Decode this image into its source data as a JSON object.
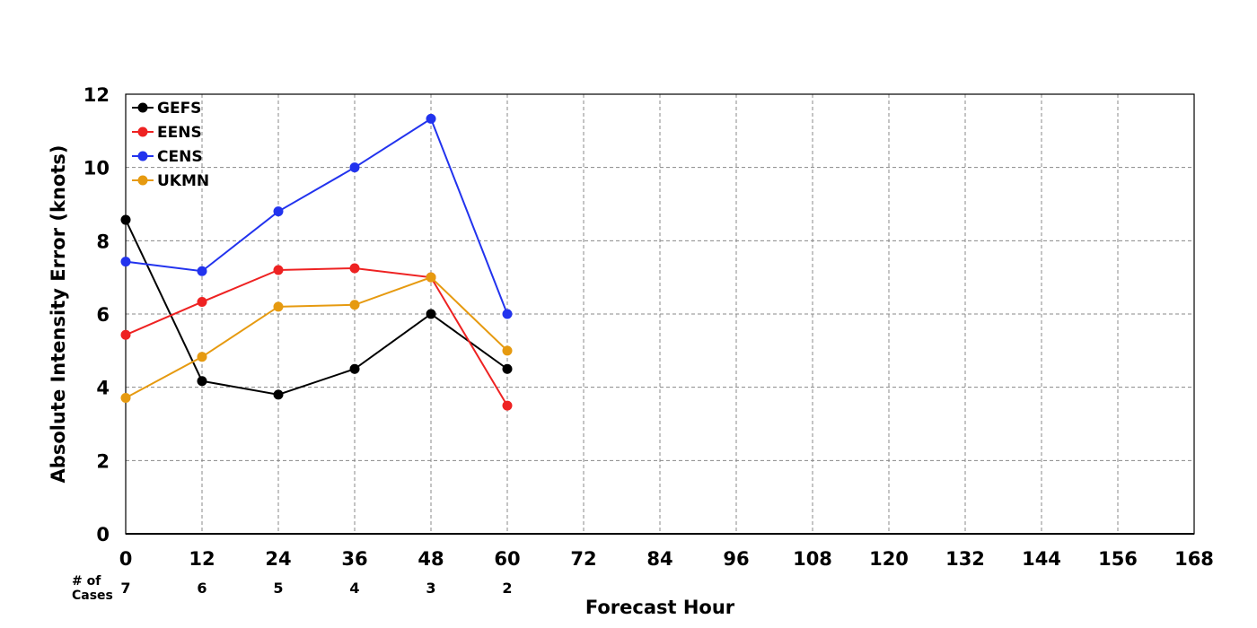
{
  "chart_data": {
    "type": "line",
    "title": "",
    "xlabel": "Forecast Hour",
    "ylabel": "Absolute Intensity Error (knots)",
    "xlim": [
      0,
      168
    ],
    "ylim": [
      0,
      12
    ],
    "x_ticks": [
      "0",
      "12",
      "24",
      "36",
      "48",
      "60",
      "72",
      "84",
      "96",
      "108",
      "120",
      "132",
      "144",
      "156",
      "168"
    ],
    "y_ticks": [
      "0",
      "2",
      "4",
      "6",
      "8",
      "10",
      "12"
    ],
    "grid": true,
    "legend_position": "top-left",
    "x": [
      0,
      12,
      24,
      36,
      48,
      60
    ],
    "series": [
      {
        "name": "GEFS",
        "color": "#000000",
        "values": [
          8.57,
          4.17,
          3.8,
          4.5,
          6.0,
          4.5
        ]
      },
      {
        "name": "EENS",
        "color": "#ee2222",
        "values": [
          5.43,
          6.33,
          7.2,
          7.25,
          7.0,
          3.5
        ]
      },
      {
        "name": "CENS",
        "color": "#2233ee",
        "values": [
          7.43,
          7.17,
          8.8,
          10.0,
          11.33,
          6.0
        ]
      },
      {
        "name": "UKMN",
        "color": "#e69a10",
        "values": [
          3.71,
          4.83,
          6.2,
          6.25,
          7.0,
          5.0
        ]
      }
    ],
    "cases": {
      "label_line1": "# of",
      "label_line2": "Cases",
      "values": [
        "7",
        "6",
        "5",
        "4",
        "3",
        "2"
      ]
    }
  }
}
